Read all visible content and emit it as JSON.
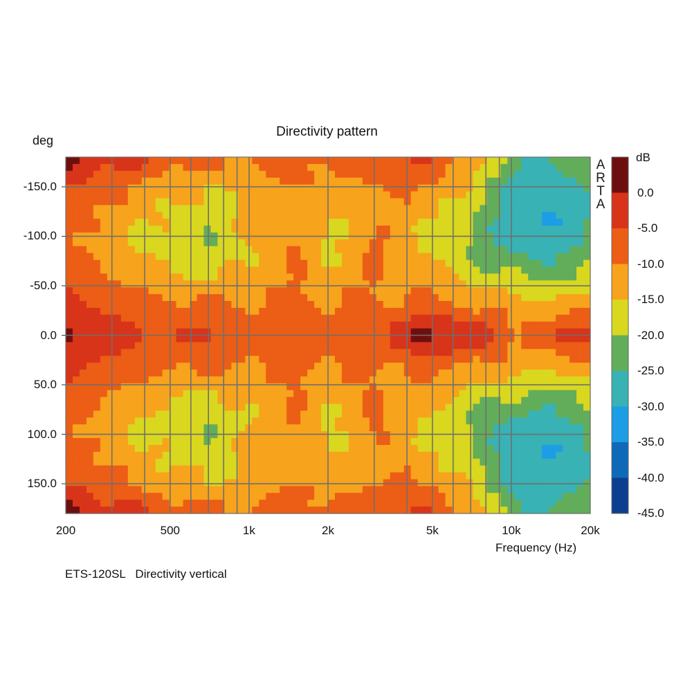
{
  "chart_data": {
    "type": "heatmap",
    "title": "Directivity pattern",
    "ylabel": "deg",
    "xlabel": "Frequency (Hz)",
    "x_scale": "log",
    "xlim": [
      200,
      20000
    ],
    "ylim": [
      -180,
      180
    ],
    "y_inverted": true,
    "x_tick_values": [
      200,
      500,
      1000,
      2000,
      5000,
      10000,
      20000
    ],
    "x_tick_labels": [
      "200",
      "500",
      "1k",
      "2k",
      "5k",
      "10k",
      "20k"
    ],
    "y_tick_values": [
      -150,
      -100,
      -50,
      0,
      50,
      100,
      150
    ],
    "y_tick_labels": [
      "-150.0",
      "-100.0",
      "-50.0",
      "0.0",
      "50.0",
      "100.0",
      "150.0"
    ],
    "grid": true,
    "colorbar": {
      "label": "dB",
      "tick_labels": [
        "0.0",
        "-5.0",
        "-10.0",
        "-15.0",
        "-20.0",
        "-25.0",
        "-30.0",
        "-35.0",
        "-40.0",
        "-45.0"
      ],
      "levels": [
        {
          "min": 0,
          "max": 5,
          "color": "#6e0f0f"
        },
        {
          "min": -5,
          "max": 0,
          "color": "#d8341a"
        },
        {
          "min": -10,
          "max": -5,
          "color": "#ec5d16"
        },
        {
          "min": -15,
          "max": -10,
          "color": "#f7a31c"
        },
        {
          "min": -20,
          "max": -15,
          "color": "#d9d71e"
        },
        {
          "min": -25,
          "max": -20,
          "color": "#62ad5a"
        },
        {
          "min": -30,
          "max": -25,
          "color": "#38b2b4"
        },
        {
          "min": -35,
          "max": -30,
          "color": "#1c9de6"
        },
        {
          "min": -40,
          "max": -35,
          "color": "#0f69b9"
        },
        {
          "min": -45,
          "max": -40,
          "color": "#0c3f8f"
        }
      ]
    },
    "approx_response_db": {
      "note_x_hz": [
        200,
        300,
        500,
        700,
        1000,
        1500,
        2000,
        3000,
        5000,
        7000,
        10000,
        14000,
        20000
      ],
      "rows": [
        {
          "deg": 0,
          "values": [
            1,
            -3,
            -5,
            -5,
            -6,
            -7,
            -8,
            -6,
            2,
            0,
            -8,
            -7,
            1
          ]
        },
        {
          "deg": 30,
          "values": [
            -4,
            -6,
            -8,
            -9,
            -10,
            -8,
            -10,
            -9,
            -8,
            -11,
            -12,
            -13,
            -12
          ]
        },
        {
          "deg": 60,
          "values": [
            -6,
            -11,
            -15,
            -16,
            -14,
            -10,
            -13,
            -10,
            -14,
            -17,
            -20,
            -22,
            -19
          ]
        },
        {
          "deg": 90,
          "values": [
            -8,
            -14,
            -18,
            -20,
            -15,
            -9,
            -17,
            -9,
            -17,
            -21,
            -26,
            -27,
            -24
          ]
        },
        {
          "deg": 120,
          "values": [
            -7,
            -12,
            -16,
            -18,
            -14,
            -11,
            -15,
            -12,
            -14,
            -20,
            -27,
            -31,
            -25
          ]
        },
        {
          "deg": 150,
          "values": [
            -4,
            -9,
            -13,
            -15,
            -13,
            -9,
            -12,
            -10,
            -10,
            -16,
            -26,
            -30,
            -23
          ]
        },
        {
          "deg": 180,
          "values": [
            1,
            -2,
            -6,
            -8,
            -9,
            -7,
            -8,
            -7,
            -5,
            -11,
            -22,
            -26,
            -21
          ]
        }
      ]
    }
  },
  "y_axis_unit": "deg",
  "watermark_letters": [
    "A",
    "R",
    "T",
    "A"
  ],
  "footer_text": "ETS-120SL   Directivity vertical"
}
